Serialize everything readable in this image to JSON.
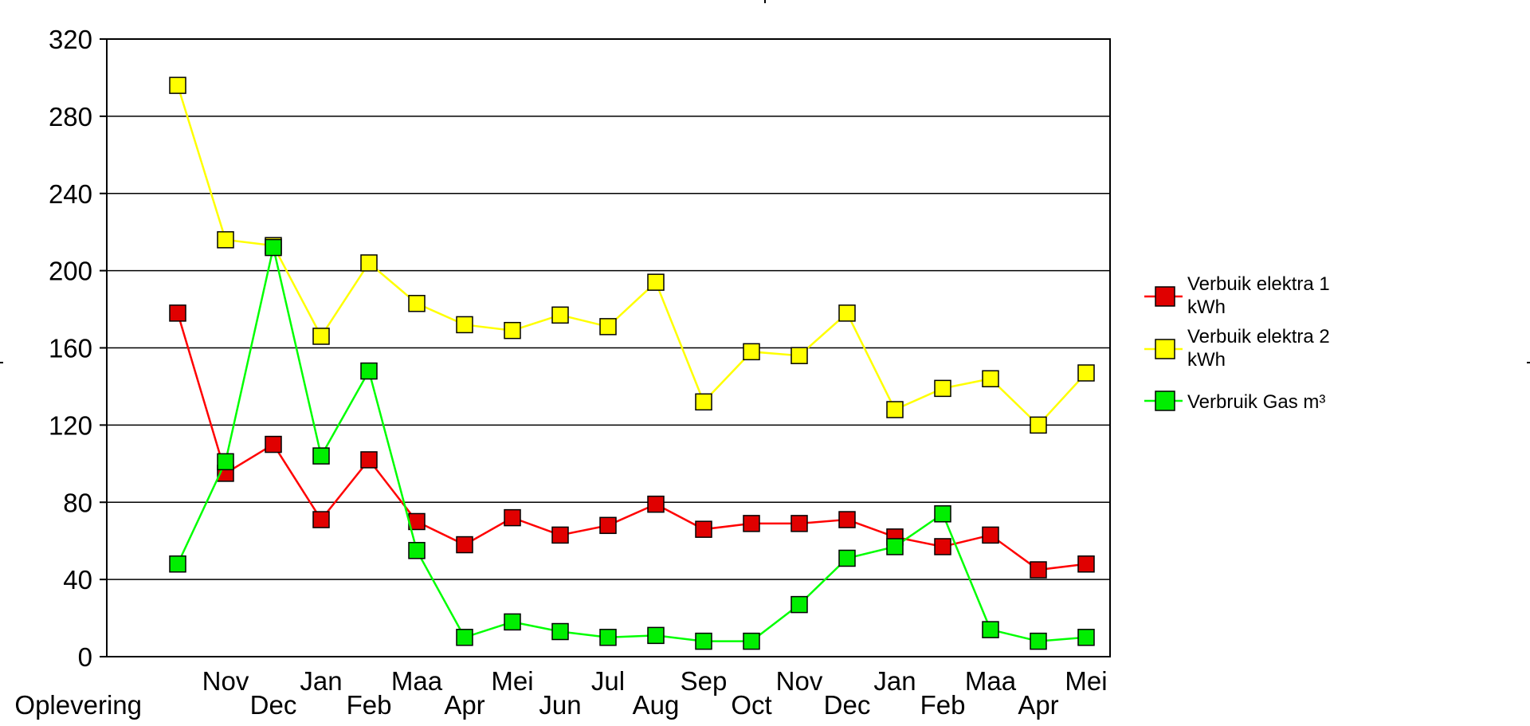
{
  "chart_data": {
    "type": "line",
    "title": "",
    "xlabel": "",
    "ylabel": "",
    "ylim": [
      0,
      320
    ],
    "y_ticks": [
      0,
      40,
      80,
      120,
      160,
      200,
      240,
      280,
      320
    ],
    "grid": "horizontal",
    "legend_position": "right",
    "categories": [
      "Oplevering",
      "Nov",
      "Dec",
      "Jan",
      "Feb",
      "Maa",
      "Apr",
      "Mei",
      "Jun",
      "Jul",
      "Aug",
      "Sep",
      "Oct",
      "Nov",
      "Dec",
      "Jan",
      "Feb",
      "Maa",
      "Apr",
      "Mei"
    ],
    "series": [
      {
        "name_lines": [
          "Verbuik elektra 1",
          "kWh"
        ],
        "color": "#ff0000",
        "marker_color": "#e00000",
        "values": [
          178,
          95,
          110,
          71,
          102,
          70,
          58,
          72,
          63,
          68,
          79,
          66,
          69,
          69,
          71,
          62,
          57,
          63,
          45,
          48
        ]
      },
      {
        "name_lines": [
          "Verbuik elektra 2",
          "kWh"
        ],
        "color": "#ffff00",
        "marker_color": "#ffff00",
        "values": [
          296,
          216,
          213,
          166,
          204,
          183,
          172,
          169,
          177,
          171,
          194,
          132,
          158,
          156,
          178,
          128,
          139,
          144,
          120,
          147
        ]
      },
      {
        "name_lines": [
          "Verbruik Gas m³"
        ],
        "color": "#00ff00",
        "marker_color": "#00ee00",
        "values": [
          48,
          101,
          212,
          104,
          148,
          55,
          10,
          18,
          13,
          10,
          11,
          8,
          8,
          27,
          51,
          57,
          74,
          14,
          8,
          10
        ]
      }
    ]
  }
}
